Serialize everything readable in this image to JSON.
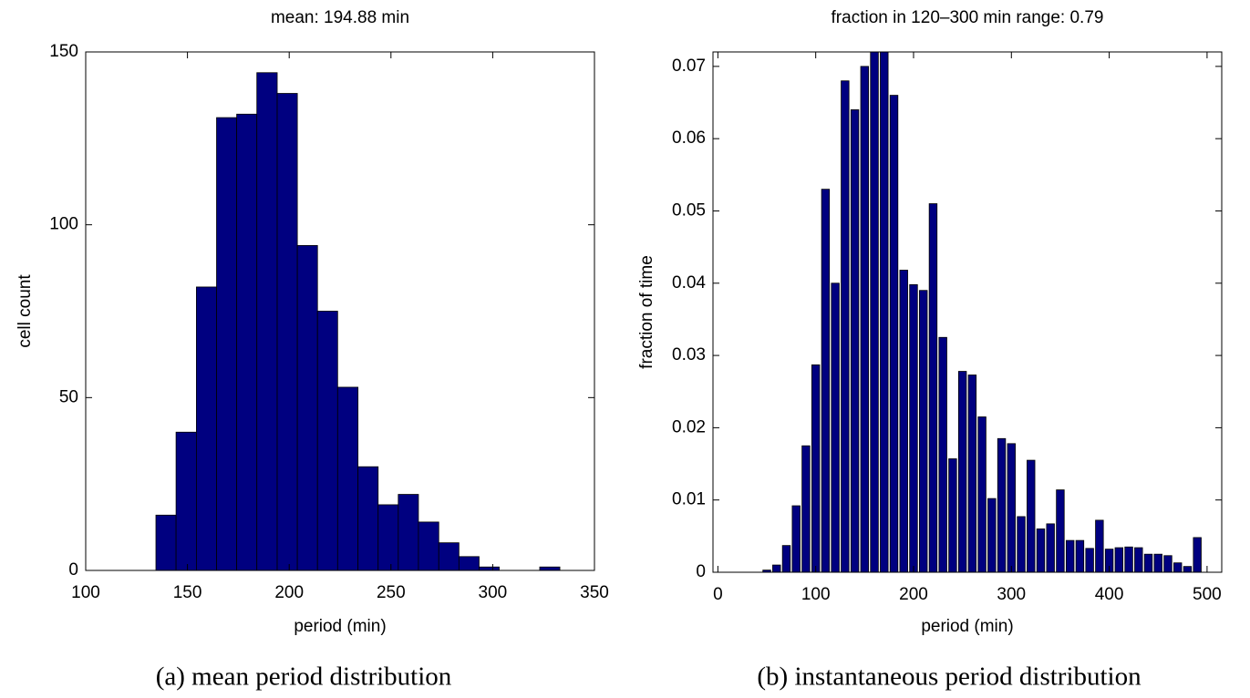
{
  "chart_data": [
    {
      "type": "histogram",
      "title": "mean: 194.88 min",
      "xlabel": "period (min)",
      "ylabel": "cell count",
      "caption": "(a)  mean period distribution",
      "bins": [
        134.5,
        144.4,
        154.4,
        164.3,
        174.2,
        184.1,
        194.1,
        204.0,
        213.9,
        223.8,
        233.8,
        243.7,
        253.6,
        263.5,
        273.5,
        283.4,
        293.3,
        303.2,
        313.2,
        323.1,
        333.0
      ],
      "values": [
        16,
        40,
        82,
        131,
        132,
        144,
        138,
        94,
        75,
        53,
        30,
        19,
        22,
        14,
        8,
        4,
        1,
        0,
        0,
        1
      ],
      "color": "#000080",
      "edgecolor": "#000000",
      "bar_width": 1,
      "xlim": [
        100,
        350
      ],
      "xticks": [
        100,
        150,
        200,
        250,
        300,
        350
      ],
      "ylim": [
        0,
        150
      ],
      "yticks": [
        0,
        50,
        100,
        150
      ]
    },
    {
      "type": "histogram",
      "title": "fraction in 120–300 min range: 0.79",
      "xlabel": "period (min)",
      "ylabel": "fraction of time",
      "caption": "(b)  instantaneous period distribution",
      "bins": [
        45,
        55,
        65,
        75,
        85,
        95,
        105,
        115,
        125,
        135,
        145,
        155,
        165,
        175,
        185,
        195,
        205,
        215,
        225,
        235,
        245,
        255,
        265,
        275,
        285,
        295,
        305,
        315,
        325,
        335,
        345,
        355,
        365,
        375,
        385,
        395,
        405,
        415,
        425,
        435,
        445,
        455,
        465,
        475,
        485,
        495
      ],
      "values": [
        0.0003,
        0.001,
        0.0037,
        0.0092,
        0.0175,
        0.0287,
        0.053,
        0.04,
        0.068,
        0.064,
        0.07,
        0.072,
        0.072,
        0.066,
        0.0418,
        0.0398,
        0.039,
        0.051,
        0.0325,
        0.0157,
        0.0278,
        0.0273,
        0.0215,
        0.0102,
        0.0185,
        0.0178,
        0.0077,
        0.0155,
        0.006,
        0.0067,
        0.0114,
        0.0044,
        0.0044,
        0.0033,
        0.0072,
        0.0032,
        0.0034,
        0.0035,
        0.0034,
        0.0025,
        0.0025,
        0.0023,
        0.0013,
        0.0008,
        0.0048
      ],
      "color": "#000080",
      "edgecolor": "#000000",
      "bar_width": 0.8,
      "xlim": [
        -5,
        515
      ],
      "xticks": [
        0,
        100,
        200,
        300,
        400,
        500
      ],
      "ylim": [
        0,
        0.072
      ],
      "yticks": [
        0,
        0.01,
        0.02,
        0.03,
        0.04,
        0.05,
        0.06,
        0.07
      ]
    }
  ]
}
